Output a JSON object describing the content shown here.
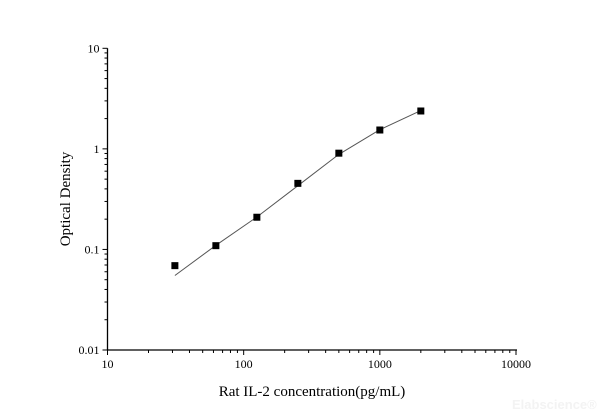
{
  "chart_data": {
    "type": "scatter",
    "title": "",
    "xlabel": "Rat IL-2 concentration(pg/mL)",
    "ylabel": "Optical Density",
    "xscale": "log",
    "yscale": "log",
    "xlim": [
      10,
      10000
    ],
    "ylim": [
      0.01,
      10
    ],
    "xticks": [
      "10",
      "100",
      "1000",
      "10000"
    ],
    "yticks": [
      "0.01",
      "0.1",
      "1",
      "10"
    ],
    "grid": false,
    "legend": "none",
    "series": [
      {
        "kind": "points",
        "marker": "square",
        "color": "#000000",
        "x": [
          31.25,
          62.5,
          125,
          250,
          500,
          1000,
          2000
        ],
        "y": [
          0.069,
          0.109,
          0.209,
          0.454,
          0.906,
          1.54,
          2.38
        ]
      },
      {
        "kind": "fit-line",
        "color": "#555555",
        "x": [
          31.25,
          62.5,
          125,
          250,
          500,
          1000,
          2000
        ],
        "y": [
          0.055,
          0.11,
          0.21,
          0.43,
          0.88,
          1.55,
          2.4
        ]
      }
    ]
  },
  "watermark": "Elabscience®"
}
